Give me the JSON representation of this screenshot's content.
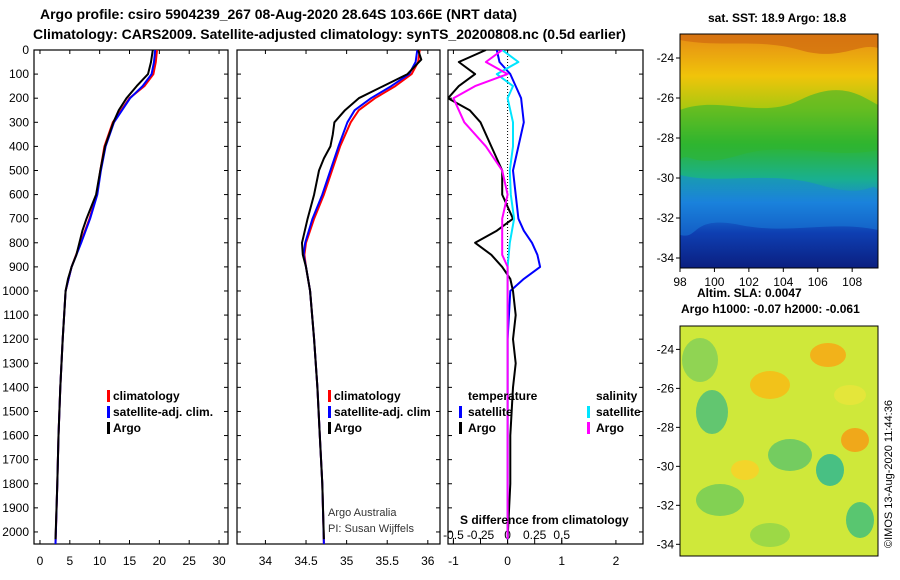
{
  "header": {
    "title_line1": "Argo profile: csiro 5904239_267 08-Aug-2020 28.64S 103.66E (NRT data)",
    "title_line2": "Climatology: CARS2009. Satellite-adjusted climatology: synTS_20200808.nc (0.5d earlier)"
  },
  "colors": {
    "climatology": "#ff0000",
    "satellite_adj": "#0000ff",
    "argo": "#000000",
    "salinity_satellite": "#00e5ff",
    "salinity_argo": "#ff00ff"
  },
  "chart_data": [
    {
      "id": "temperature",
      "type": "line",
      "xlabel": "",
      "ylabel": "",
      "xlim": [
        -1,
        31.5
      ],
      "ylim": [
        2050,
        0
      ],
      "x_ticks": [
        "0",
        "5",
        "10",
        "15",
        "20",
        "25",
        "30"
      ],
      "x_tick_values": [
        0,
        5,
        10,
        15,
        20,
        25,
        30
      ],
      "y_ticks": [
        "0",
        "100",
        "200",
        "300",
        "400",
        "500",
        "600",
        "700",
        "800",
        "900",
        "1000",
        "1100",
        "1200",
        "1300",
        "1400",
        "1500",
        "1600",
        "1700",
        "1800",
        "1900",
        "2000"
      ],
      "y_tick_values": [
        0,
        100,
        200,
        300,
        400,
        500,
        600,
        700,
        800,
        900,
        1000,
        1100,
        1200,
        1300,
        1400,
        1500,
        1600,
        1700,
        1800,
        1900,
        2000
      ],
      "legend": [
        "climatology",
        "satellite-adj. clim.",
        "Argo"
      ],
      "series": [
        {
          "name": "climatology",
          "depth": [
            0,
            50,
            100,
            150,
            200,
            300,
            400,
            500,
            600,
            700,
            800,
            900,
            1000,
            1200,
            1400,
            1600,
            1800,
            2050
          ],
          "values": [
            19.6,
            19.4,
            19.0,
            17.5,
            15.0,
            12.2,
            10.8,
            10.1,
            9.5,
            8.3,
            6.8,
            5.3,
            4.3,
            3.8,
            3.4,
            3.1,
            2.9,
            2.6
          ]
        },
        {
          "name": "satellite-adj. clim.",
          "depth": [
            0,
            50,
            100,
            150,
            200,
            300,
            400,
            500,
            600,
            700,
            800,
            900,
            1000,
            1200,
            1400,
            1600,
            1800,
            2050
          ],
          "values": [
            19.3,
            19.1,
            18.7,
            17.2,
            15.1,
            12.4,
            11.0,
            10.2,
            9.6,
            8.4,
            6.9,
            5.3,
            4.3,
            3.8,
            3.4,
            3.1,
            2.9,
            2.6
          ]
        },
        {
          "name": "Argo",
          "depth": [
            0,
            50,
            100,
            150,
            200,
            250,
            300,
            400,
            500,
            600,
            650,
            700,
            750,
            800,
            850,
            900,
            950,
            1000,
            1200,
            1400,
            1600,
            1800,
            2030
          ],
          "values": [
            18.9,
            18.6,
            18.1,
            16.2,
            14.5,
            13.2,
            12.3,
            10.9,
            10.1,
            9.4,
            8.6,
            7.8,
            7.1,
            6.6,
            6.1,
            5.3,
            4.7,
            4.3,
            3.8,
            3.4,
            3.1,
            2.9,
            2.6
          ]
        }
      ]
    },
    {
      "id": "salinity",
      "type": "line",
      "xlabel": "",
      "ylabel": "",
      "xlim": [
        33.65,
        36.15
      ],
      "ylim": [
        2050,
        0
      ],
      "x_ticks": [
        "34",
        "34.5",
        "35",
        "35.5",
        "36"
      ],
      "x_tick_values": [
        34,
        34.5,
        35,
        35.5,
        36
      ],
      "legend": [
        "climatology",
        "satellite-adj. clim",
        "Argo"
      ],
      "annotations": [
        "Argo Australia",
        "PI: Susan Wijffels"
      ],
      "series": [
        {
          "name": "climatology",
          "depth": [
            0,
            50,
            100,
            150,
            200,
            250,
            300,
            400,
            500,
            600,
            700,
            800,
            850,
            900,
            1000,
            1200,
            1400,
            1600,
            1800,
            2050
          ],
          "values": [
            35.9,
            35.88,
            35.8,
            35.6,
            35.35,
            35.15,
            35.05,
            34.92,
            34.82,
            34.72,
            34.6,
            34.5,
            34.48,
            34.5,
            34.55,
            34.6,
            34.64,
            34.67,
            34.7,
            34.72
          ]
        },
        {
          "name": "satellite-adj. clim.",
          "depth": [
            0,
            50,
            100,
            150,
            200,
            250,
            300,
            400,
            500,
            600,
            700,
            800,
            850,
            900,
            1000,
            1200,
            1400,
            1600,
            1800,
            2050
          ],
          "values": [
            35.87,
            35.85,
            35.77,
            35.55,
            35.3,
            35.1,
            35.01,
            34.9,
            34.8,
            34.7,
            34.58,
            34.49,
            34.47,
            34.5,
            34.55,
            34.6,
            34.64,
            34.67,
            34.7,
            34.72
          ]
        },
        {
          "name": "Argo",
          "depth": [
            0,
            40,
            100,
            150,
            200,
            250,
            300,
            350,
            400,
            450,
            500,
            600,
            700,
            800,
            850,
            900,
            1000,
            1200,
            1400,
            1600,
            1800,
            2030
          ],
          "values": [
            35.88,
            35.92,
            35.75,
            35.45,
            35.15,
            34.98,
            34.85,
            34.83,
            34.8,
            34.72,
            34.66,
            34.6,
            34.52,
            34.45,
            34.46,
            34.5,
            34.55,
            34.6,
            34.64,
            34.67,
            34.7,
            34.72
          ]
        }
      ]
    },
    {
      "id": "difference",
      "type": "line",
      "xlim": [
        -1.1,
        2.5
      ],
      "ylim": [
        2050,
        0
      ],
      "x_ticks": [
        "-1",
        "0",
        "1",
        "2"
      ],
      "x_tick_values": [
        -1,
        0,
        1,
        2
      ],
      "s_ticks": [
        "-0.5",
        "-0.25",
        "0",
        "0.25",
        "0.5"
      ],
      "s_tick_positions": [
        -0.5,
        -0.25,
        0,
        0.25,
        0.5
      ],
      "s_label": "S difference from climatology",
      "legend_temperature": [
        "temperature",
        "satellite",
        "Argo"
      ],
      "legend_salinity": [
        "salinity",
        "satellite",
        "Argo"
      ],
      "series": [
        {
          "name": "temperature satellite",
          "depth": [
            0,
            50,
            100,
            150,
            200,
            300,
            400,
            500,
            600,
            700,
            750,
            800,
            850,
            900,
            950,
            1000,
            1200,
            1400,
            1600,
            1800,
            2030
          ],
          "values": [
            -0.2,
            -0.15,
            0.05,
            0.15,
            0.25,
            0.3,
            0.2,
            0.1,
            0.15,
            0.2,
            0.3,
            0.45,
            0.55,
            0.6,
            0.3,
            0.05,
            0.0,
            0.0,
            0.0,
            0.0,
            0.0
          ]
        },
        {
          "name": "temperature Argo",
          "depth": [
            0,
            50,
            100,
            150,
            200,
            250,
            300,
            400,
            500,
            600,
            700,
            750,
            800,
            850,
            900,
            950,
            1000,
            1100,
            1200,
            1300,
            1400,
            1600,
            1800,
            2030
          ],
          "values": [
            -0.4,
            -0.9,
            -0.6,
            -0.9,
            -1.1,
            -0.7,
            -0.5,
            -0.3,
            -0.1,
            -0.1,
            0.1,
            -0.2,
            -0.6,
            -0.3,
            -0.1,
            0.05,
            0.1,
            0.15,
            0.1,
            0.15,
            0.1,
            0.05,
            0.05,
            0.0
          ]
        },
        {
          "name": "salinity satellite",
          "depth": [
            0,
            50,
            100,
            150,
            200,
            300,
            400,
            500,
            600,
            700,
            800,
            900,
            1000,
            1200,
            1400,
            1600,
            1800,
            2030
          ],
          "values": [
            -0.05,
            0.1,
            -0.1,
            0.05,
            0.0,
            0.05,
            0.05,
            0.02,
            0.03,
            0.06,
            0.02,
            0.0,
            0.0,
            0.0,
            0.0,
            0.0,
            0.0,
            0.0
          ]
        },
        {
          "name": "salinity Argo",
          "depth": [
            0,
            50,
            100,
            150,
            200,
            300,
            400,
            500,
            600,
            700,
            800,
            850,
            900,
            1000,
            1200,
            1400,
            1600,
            1800,
            2030
          ],
          "values": [
            -0.05,
            -0.2,
            0.0,
            -0.3,
            -0.5,
            -0.4,
            -0.2,
            -0.05,
            0.0,
            -0.05,
            -0.05,
            -0.05,
            0.0,
            0.0,
            0.0,
            0.0,
            0.0,
            0.0,
            0.0
          ]
        }
      ]
    },
    {
      "id": "sst-map",
      "type": "heatmap",
      "title": "sat. SST: 18.9 Argo: 18.8",
      "x_ticks": [
        "98",
        "100",
        "102",
        "104",
        "106",
        "108"
      ],
      "x_tick_values": [
        98,
        100,
        102,
        104,
        106,
        108
      ],
      "y_ticks": [
        "-24",
        "-26",
        "-28",
        "-30",
        "-32",
        "-34"
      ],
      "y_tick_values": [
        -24,
        -26,
        -28,
        -30,
        -32,
        -34
      ],
      "xlim": [
        98,
        109.5
      ],
      "ylim": [
        -34.5,
        -22.8
      ]
    },
    {
      "id": "sla-map",
      "type": "heatmap",
      "title": "Altim. SLA: 0.0047",
      "subtitle": "Argo h1000: -0.07 h2000: -0.061",
      "y_ticks": [
        "-24",
        "-26",
        "-28",
        "-30",
        "-32",
        "-34"
      ],
      "y_tick_values": [
        -24,
        -26,
        -28,
        -30,
        -32,
        -34
      ],
      "ylim": [
        -34.6,
        -22.8
      ],
      "credit": "©IMOS 13-Aug-2020 11:44:36"
    }
  ]
}
